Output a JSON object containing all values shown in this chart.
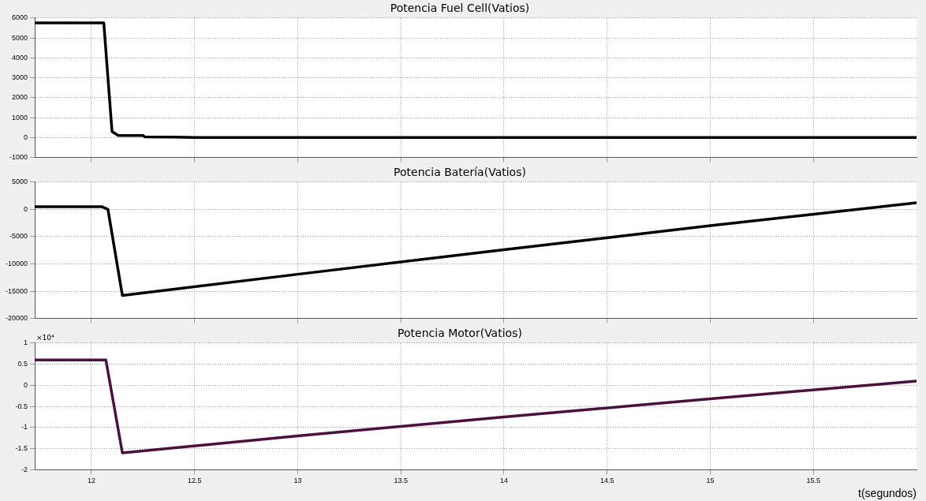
{
  "chart_data": [
    {
      "type": "line",
      "title": "Potencia Fuel Cell(Vatios)",
      "x": [
        11.725,
        12.06,
        12.08,
        12.1,
        12.13,
        12.25,
        12.26,
        12.4,
        12.5,
        13,
        14,
        15,
        16
      ],
      "series": [
        {
          "color": "#000000",
          "values": [
            5750,
            5750,
            3000,
            300,
            100,
            100,
            30,
            20,
            0,
            0,
            0,
            0,
            0
          ]
        }
      ],
      "xlim": [
        11.725,
        16
      ],
      "xticks": [
        12,
        12.5,
        13,
        13.5,
        14,
        14.5,
        15,
        15.5
      ],
      "ylim": [
        -1000,
        6000
      ],
      "yticks": [
        -1000,
        0,
        1000,
        2000,
        3000,
        4000,
        5000,
        6000
      ],
      "grid": true,
      "tick_labels": "y",
      "line_style": "solid",
      "marker": "none"
    },
    {
      "type": "line",
      "title": "Potencia Batería(Vatios)",
      "x": [
        11.725,
        12.05,
        12.08,
        12.15,
        13,
        14,
        15,
        16
      ],
      "series": [
        {
          "color": "#000000",
          "values": [
            500,
            500,
            0,
            -15800,
            -11900,
            -7400,
            -3000,
            1200
          ]
        }
      ],
      "xlim": [
        11.725,
        16
      ],
      "xticks": [
        12,
        12.5,
        13,
        13.5,
        14,
        14.5,
        15,
        15.5
      ],
      "ylim": [
        -20000,
        5000
      ],
      "yticks": [
        -20000,
        -15000,
        -10000,
        -5000,
        0,
        5000
      ],
      "grid": true,
      "tick_labels": "y",
      "line_style": "solid",
      "marker": "none"
    },
    {
      "type": "line",
      "title": "Potencia Motor(Vatios)",
      "xlabel": "t(segundos)",
      "annotations": [
        "×10⁴"
      ],
      "x": [
        11.725,
        12.07,
        12.15,
        13,
        14,
        15,
        16
      ],
      "series": [
        {
          "color": "#4b1040",
          "values": [
            0.6,
            0.6,
            -1.6,
            -1.2,
            -0.75,
            -0.32,
            0.1
          ]
        }
      ],
      "xlim": [
        11.725,
        16
      ],
      "xticks": [
        12,
        12.5,
        13,
        13.5,
        14,
        14.5,
        15,
        15.5
      ],
      "ylim": [
        -2,
        1
      ],
      "yticks": [
        -2,
        -1.5,
        -1,
        -0.5,
        0,
        0.5,
        1
      ],
      "grid": true,
      "line_style": "solid",
      "marker": "none"
    }
  ]
}
